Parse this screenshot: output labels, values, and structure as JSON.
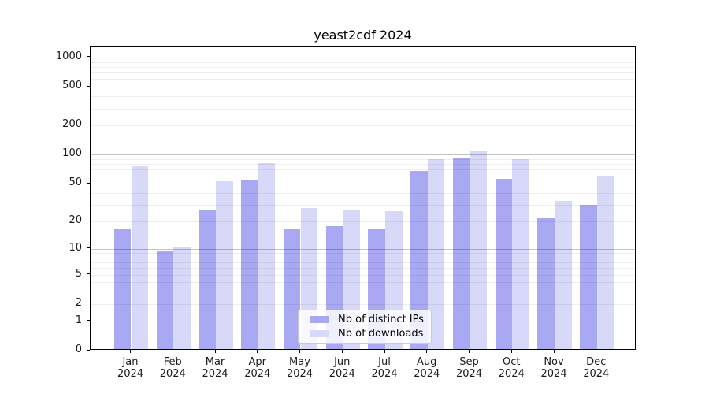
{
  "chart_data": {
    "type": "bar",
    "title": "yeast2cdf 2024",
    "months": [
      "Jan",
      "Feb",
      "Mar",
      "Apr",
      "May",
      "Jun",
      "Jul",
      "Aug",
      "Sep",
      "Oct",
      "Nov",
      "Dec"
    ],
    "year_label": "2024",
    "series": [
      {
        "name": "Nb of distinct IPs",
        "color": "#a8a8f3",
        "values": [
          16,
          9,
          26,
          53,
          16,
          17,
          16,
          65,
          88,
          54,
          21,
          29
        ]
      },
      {
        "name": "Nb of downloads",
        "color": "#d8d8f8",
        "values": [
          73,
          10,
          51,
          79,
          27,
          26,
          25,
          87,
          105,
          87,
          32,
          58
        ]
      }
    ],
    "yscale": "log1p",
    "y_ticks": [
      0,
      1,
      2,
      5,
      10,
      20,
      50,
      100,
      200,
      500,
      1000
    ],
    "ylim": [
      0,
      1270
    ],
    "grid": "horizontal",
    "legend_position": "lower-center-inside"
  }
}
